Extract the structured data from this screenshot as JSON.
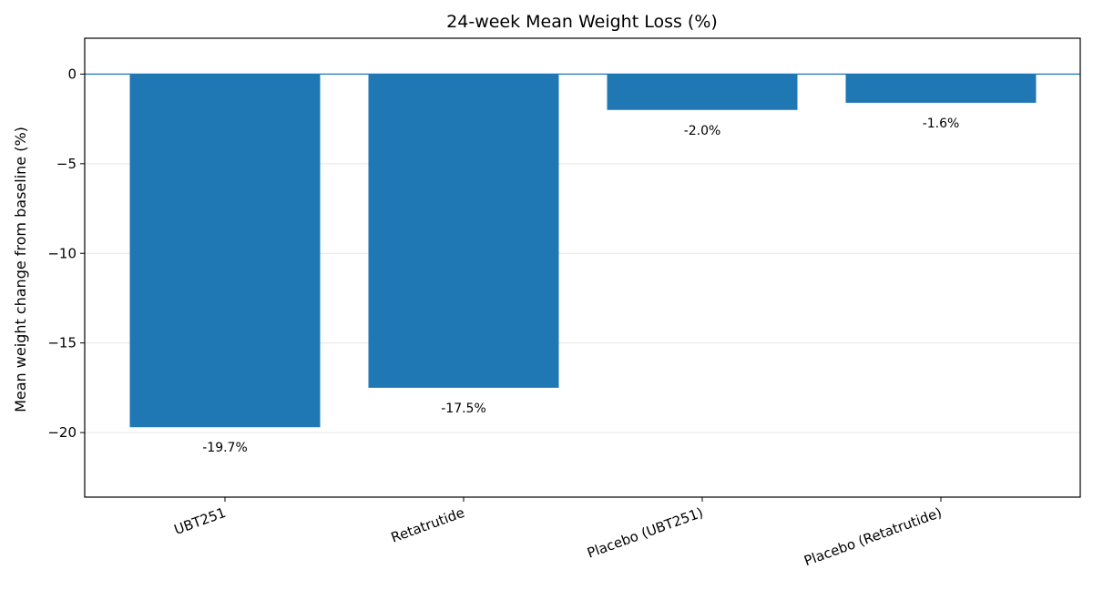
{
  "chart_data": {
    "type": "bar",
    "title": "24-week Mean Weight Loss (%)",
    "xlabel": "",
    "ylabel": "Mean weight change from baseline (%)",
    "categories": [
      "UBT251",
      "Retatrutide",
      "Placebo (UBT251)",
      "Placebo (Retatrutide)"
    ],
    "values": [
      -19.7,
      -17.5,
      -2.0,
      -1.6
    ],
    "data_labels": [
      "-19.7%",
      "-17.5%",
      "-2.0%",
      "-1.6%"
    ],
    "ylim": [
      -23.6,
      2.0
    ],
    "yticks": [
      0,
      -5,
      -10,
      -15,
      -20
    ],
    "ytick_labels": [
      "0",
      "−5",
      "−10",
      "−15",
      "−20"
    ],
    "grid": "y",
    "legend": "none",
    "zero_line": true,
    "colors": {
      "bar": "#1f77b4",
      "zero_line": "#1f77b4",
      "grid": "#e6e6e6",
      "axes": "#000000"
    }
  }
}
